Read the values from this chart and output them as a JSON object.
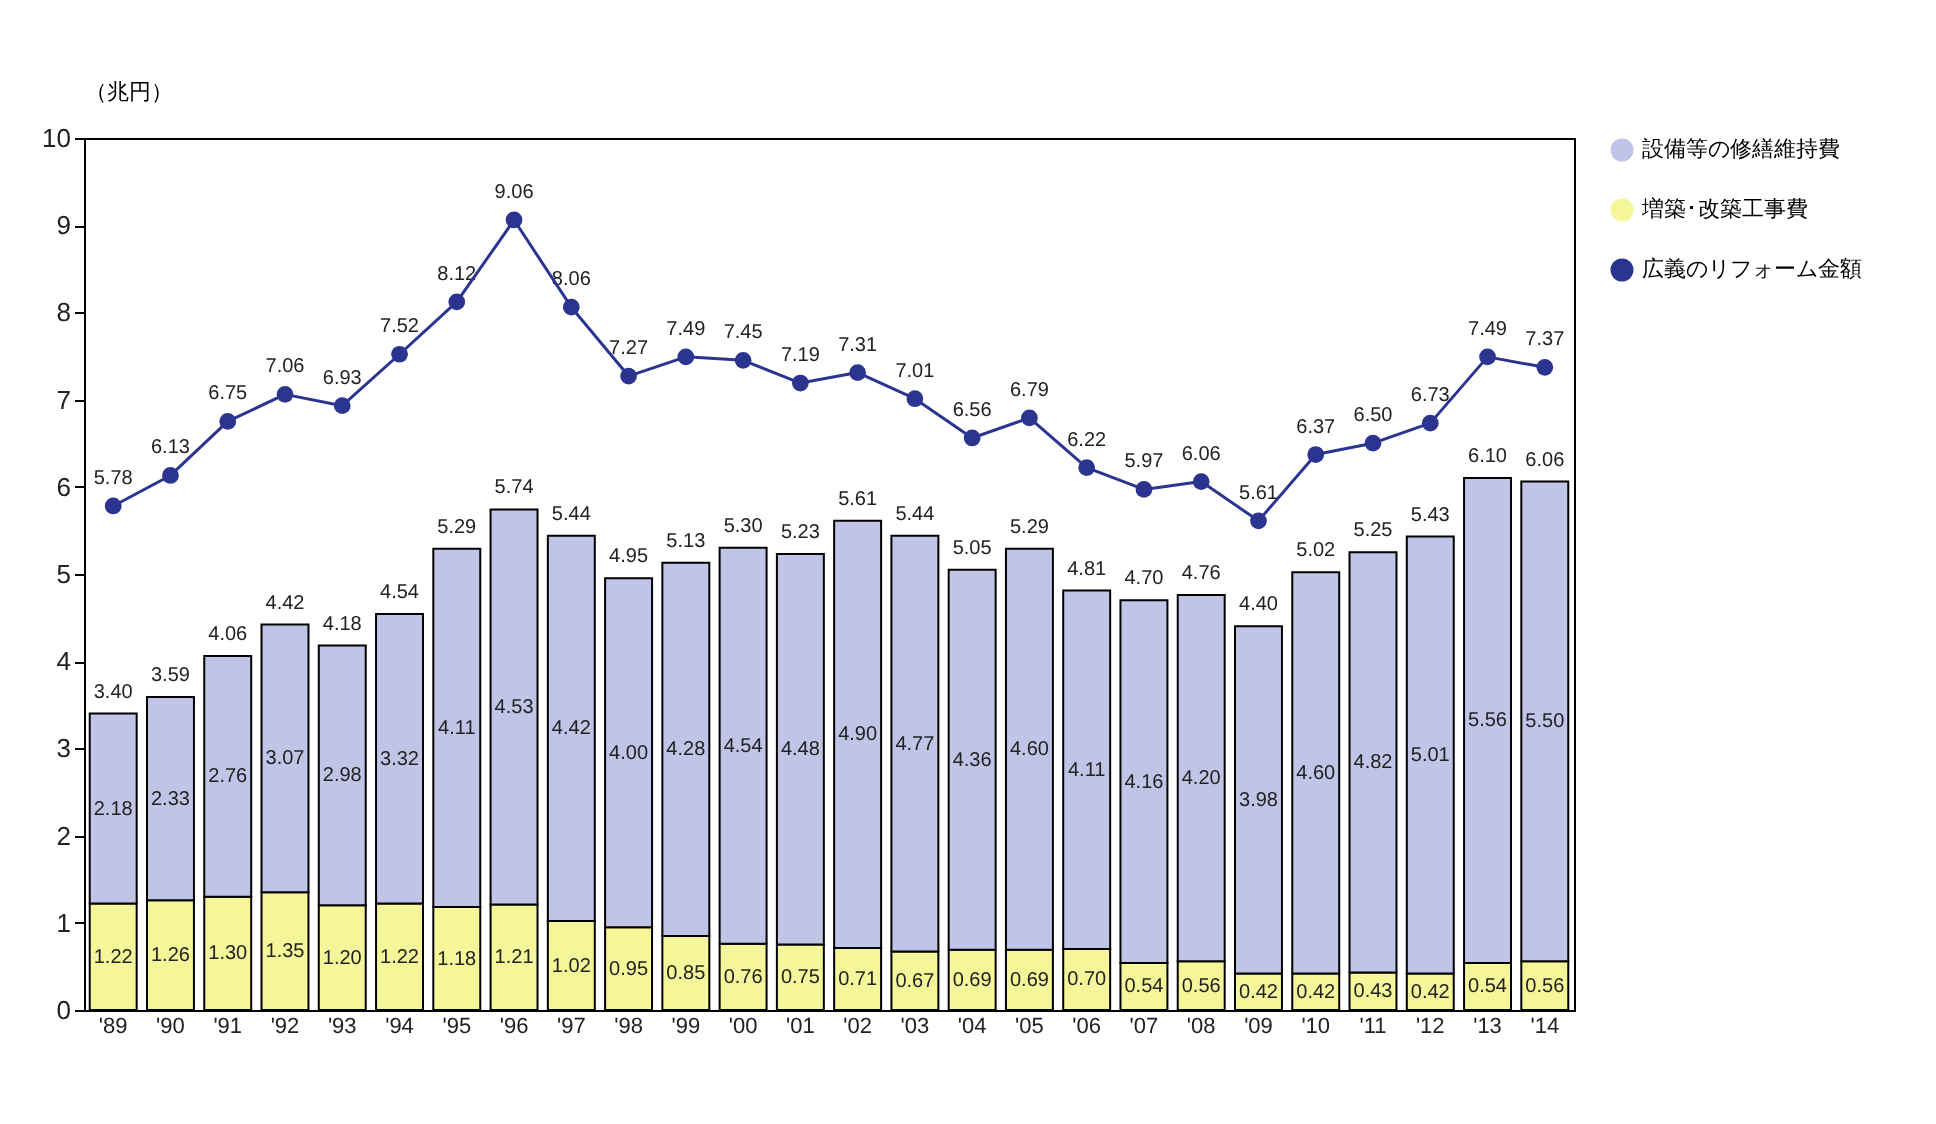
{
  "chart_data": {
    "type": "bar",
    "stacked": true,
    "ylabel": "（兆円）",
    "categories": [
      "'89",
      "'90",
      "'91",
      "'92",
      "'93",
      "'94",
      "'95",
      "'96",
      "'97",
      "'98",
      "'99",
      "'00",
      "'01",
      "'02",
      "'03",
      "'04",
      "'05",
      "'06",
      "'07",
      "'08",
      "'09",
      "'10",
      "'11",
      "'12",
      "'13",
      "'14"
    ],
    "series": [
      {
        "name": "増築･改築工事費",
        "color": "#f5f59a",
        "values": [
          1.22,
          1.26,
          1.3,
          1.35,
          1.2,
          1.22,
          1.18,
          1.21,
          1.02,
          0.95,
          0.85,
          0.76,
          0.75,
          0.71,
          0.67,
          0.69,
          0.69,
          0.7,
          0.54,
          0.56,
          0.42,
          0.42,
          0.43,
          0.42,
          0.54,
          0.56
        ],
        "value_labels": [
          "1.22",
          "1.26",
          "1.30",
          "1.35",
          "1.20",
          "1.22",
          "1.18",
          "1.21",
          "1.02",
          "0.95",
          "0.85",
          "0.76",
          "0.75",
          "0.71",
          "0.67",
          "0.69",
          "0.69",
          "0.70",
          "0.54",
          "0.56",
          "0.42",
          "0.42",
          "0.43",
          "0.42",
          "0.54",
          "0.56"
        ]
      },
      {
        "name": "設備等の修繕維持費",
        "color": "#c0c4e6",
        "values": [
          2.18,
          2.33,
          2.76,
          3.07,
          2.98,
          3.32,
          4.11,
          4.53,
          4.42,
          4.0,
          4.28,
          4.54,
          4.48,
          4.9,
          4.77,
          4.36,
          4.6,
          4.11,
          4.16,
          4.2,
          3.98,
          4.6,
          4.82,
          5.01,
          5.56,
          5.5
        ],
        "value_labels": [
          "2.18",
          "2.33",
          "2.76",
          "3.07",
          "2.98",
          "3.32",
          "4.11",
          "4.53",
          "4.42",
          "4.00",
          "4.28",
          "4.54",
          "4.48",
          "4.90",
          "4.77",
          "4.36",
          "4.60",
          "4.11",
          "4.16",
          "4.20",
          "3.98",
          "4.60",
          "4.82",
          "5.01",
          "5.56",
          "5.50"
        ]
      },
      {
        "name": "広義のリフォーム金額",
        "type": "line",
        "color": "#2b3590",
        "values": [
          5.78,
          6.13,
          6.75,
          7.06,
          6.93,
          7.52,
          8.12,
          9.06,
          8.06,
          7.27,
          7.49,
          7.45,
          7.19,
          7.31,
          7.01,
          6.56,
          6.79,
          6.22,
          5.97,
          6.06,
          5.61,
          6.37,
          6.5,
          6.73,
          7.49,
          7.37
        ],
        "value_labels": [
          "5.78",
          "6.13",
          "6.75",
          "7.06",
          "6.93",
          "7.52",
          "8.12",
          "9.06",
          "8.06",
          "7.27",
          "7.49",
          "7.45",
          "7.19",
          "7.31",
          "7.01",
          "6.56",
          "6.79",
          "6.22",
          "5.97",
          "6.06",
          "5.61",
          "6.37",
          "6.50",
          "6.73",
          "7.49",
          "7.37"
        ]
      }
    ],
    "totals": [
      "3.40",
      "3.59",
      "4.06",
      "4.42",
      "4.18",
      "4.54",
      "5.29",
      "5.74",
      "5.44",
      "4.95",
      "5.13",
      "5.30",
      "5.23",
      "5.61",
      "5.44",
      "5.05",
      "5.29",
      "4.81",
      "4.70",
      "4.76",
      "4.40",
      "5.02",
      "5.25",
      "5.43",
      "6.10",
      "6.06"
    ],
    "ylim": [
      0,
      10
    ],
    "yticks": [
      0,
      1,
      2,
      3,
      4,
      5,
      6,
      7,
      8,
      9,
      10
    ],
    "grid": false,
    "legend": "right",
    "marker": "circle",
    "line_style": "solid"
  }
}
